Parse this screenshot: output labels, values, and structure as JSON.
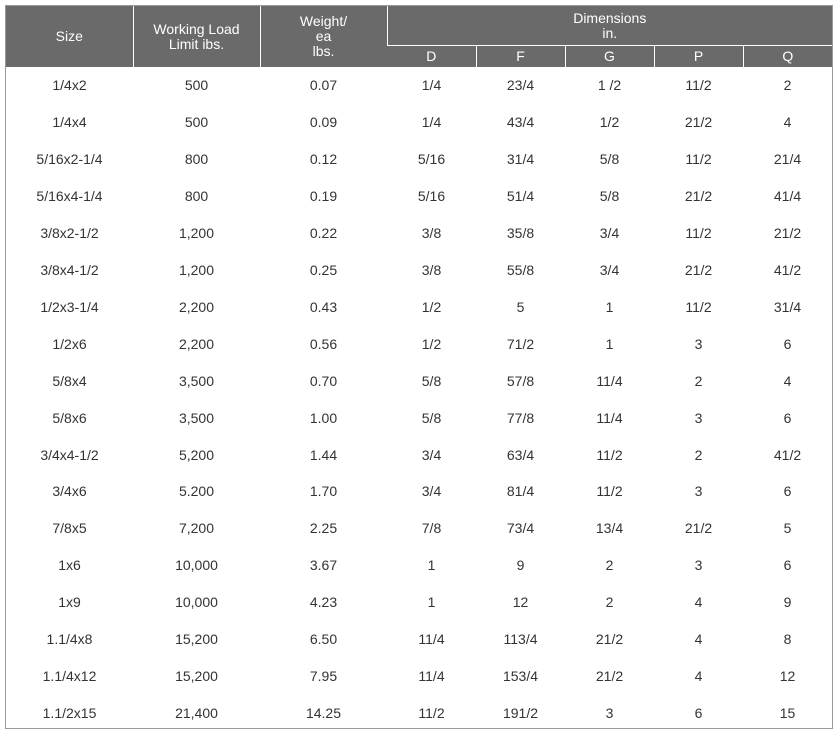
{
  "header": {
    "size": "Size",
    "wll": [
      "Working Load",
      "Limit ibs."
    ],
    "weight": [
      "Weight/",
      "ea",
      "lbs."
    ],
    "dimensions": [
      "Dimensions",
      "in."
    ],
    "dim_cols": [
      "D",
      "F",
      "G",
      "P",
      "Q"
    ]
  },
  "rows": [
    [
      "1/4x2",
      "500",
      "0.07",
      "1/4",
      "23/4",
      "1 /2",
      "11/2",
      "2"
    ],
    [
      "1/4x4",
      "500",
      "0.09",
      "1/4",
      "43/4",
      "1/2",
      "21/2",
      "4"
    ],
    [
      "5/16x2-1/4",
      "800",
      "0.12",
      "5/16",
      "31/4",
      "5/8",
      "11/2",
      "21/4"
    ],
    [
      "5/16x4-1/4",
      "800",
      "0.19",
      "5/16",
      "51/4",
      "5/8",
      "21/2",
      "41/4"
    ],
    [
      "3/8x2-1/2",
      "1,200",
      "0.22",
      "3/8",
      "35/8",
      "3/4",
      "11/2",
      "21/2"
    ],
    [
      "3/8x4-1/2",
      "1,200",
      "0.25",
      "3/8",
      "55/8",
      "3/4",
      "21/2",
      "41/2"
    ],
    [
      "1/2x3-1/4",
      "2,200",
      "0.43",
      "1/2",
      "5",
      "1",
      "11/2",
      "31/4"
    ],
    [
      "1/2x6",
      "2,200",
      "0.56",
      "1/2",
      "71/2",
      "1",
      "3",
      "6"
    ],
    [
      "5/8x4",
      "3,500",
      "0.70",
      "5/8",
      "57/8",
      "11/4",
      "2",
      "4"
    ],
    [
      "5/8x6",
      "3,500",
      "1.00",
      "5/8",
      "77/8",
      "11/4",
      "3",
      "6"
    ],
    [
      "3/4x4-1/2",
      "5,200",
      "1.44",
      "3/4",
      "63/4",
      "11/2",
      "2",
      "41/2"
    ],
    [
      "3/4x6",
      "5.200",
      "1.70",
      "3/4",
      "81/4",
      "11/2",
      "3",
      "6"
    ],
    [
      "7/8x5",
      "7,200",
      "2.25",
      "7/8",
      "73/4",
      "13/4",
      "21/2",
      "5"
    ],
    [
      "1x6",
      "10,000",
      "3.67",
      "1",
      "9",
      "2",
      "3",
      "6"
    ],
    [
      "1x9",
      "10,000",
      "4.23",
      "1",
      "12",
      "2",
      "4",
      "9"
    ],
    [
      "1.1/4x8",
      "15,200",
      "6.50",
      "11/4",
      "113/4",
      "21/2",
      "4",
      "8"
    ],
    [
      "1.1/4x12",
      "15,200",
      "7.95",
      "11/4",
      "153/4",
      "21/2",
      "4",
      "12"
    ],
    [
      "1.1/2x15",
      "21,400",
      "14.25",
      "11/2",
      "191/2",
      "3",
      "6",
      "15"
    ]
  ]
}
